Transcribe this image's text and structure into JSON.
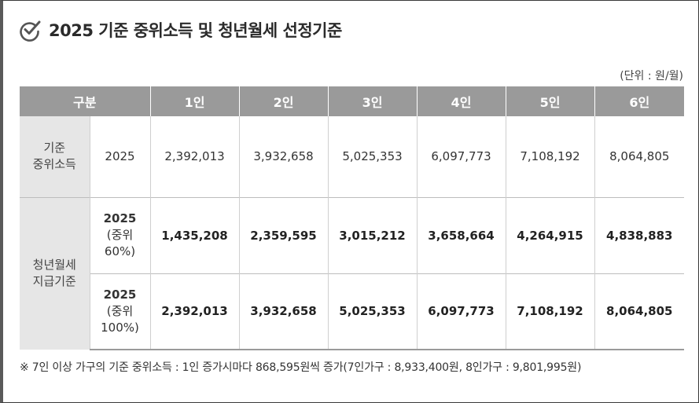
{
  "header": {
    "title": "2025 기준 중위소득 및 청년월세 선정기준",
    "icon": "check-circle-icon"
  },
  "unit_note": "(단위 : 원/월)",
  "table": {
    "header": {
      "category": "구분",
      "columns": [
        "1인",
        "2인",
        "3인",
        "4인",
        "5인",
        "6인"
      ]
    },
    "rows": [
      {
        "category_line1": "기준",
        "category_line2": "중위소득",
        "sub_line1": "2025",
        "values": [
          "2,392,013",
          "3,932,658",
          "5,025,353",
          "6,097,773",
          "7,108,192",
          "8,064,805"
        ]
      },
      {
        "category_line1": "청년월세",
        "category_line2": "지급기준",
        "sub_line1": "2025",
        "sub_line2": "(중위",
        "sub_line3": "60%)",
        "values": [
          "1,435,208",
          "2,359,595",
          "3,015,212",
          "3,658,664",
          "4,264,915",
          "4,838,883"
        ]
      },
      {
        "sub_line1": "2025",
        "sub_line2": "(중위",
        "sub_line3": "100%)",
        "values": [
          "2,392,013",
          "3,932,658",
          "5,025,353",
          "6,097,773",
          "7,108,192",
          "8,064,805"
        ]
      }
    ]
  },
  "footnote": "※ 7인 이상 가구의 기준 중위소득 : 1인 증가시마다 868,595원씩 증가(7인가구 : 8,933,400원, 8인가구 : 9,801,995원)",
  "colors": {
    "header_bg": "#9a9a9a",
    "category_bg": "#e6e6e6",
    "title_text": "#2b2b2b"
  }
}
